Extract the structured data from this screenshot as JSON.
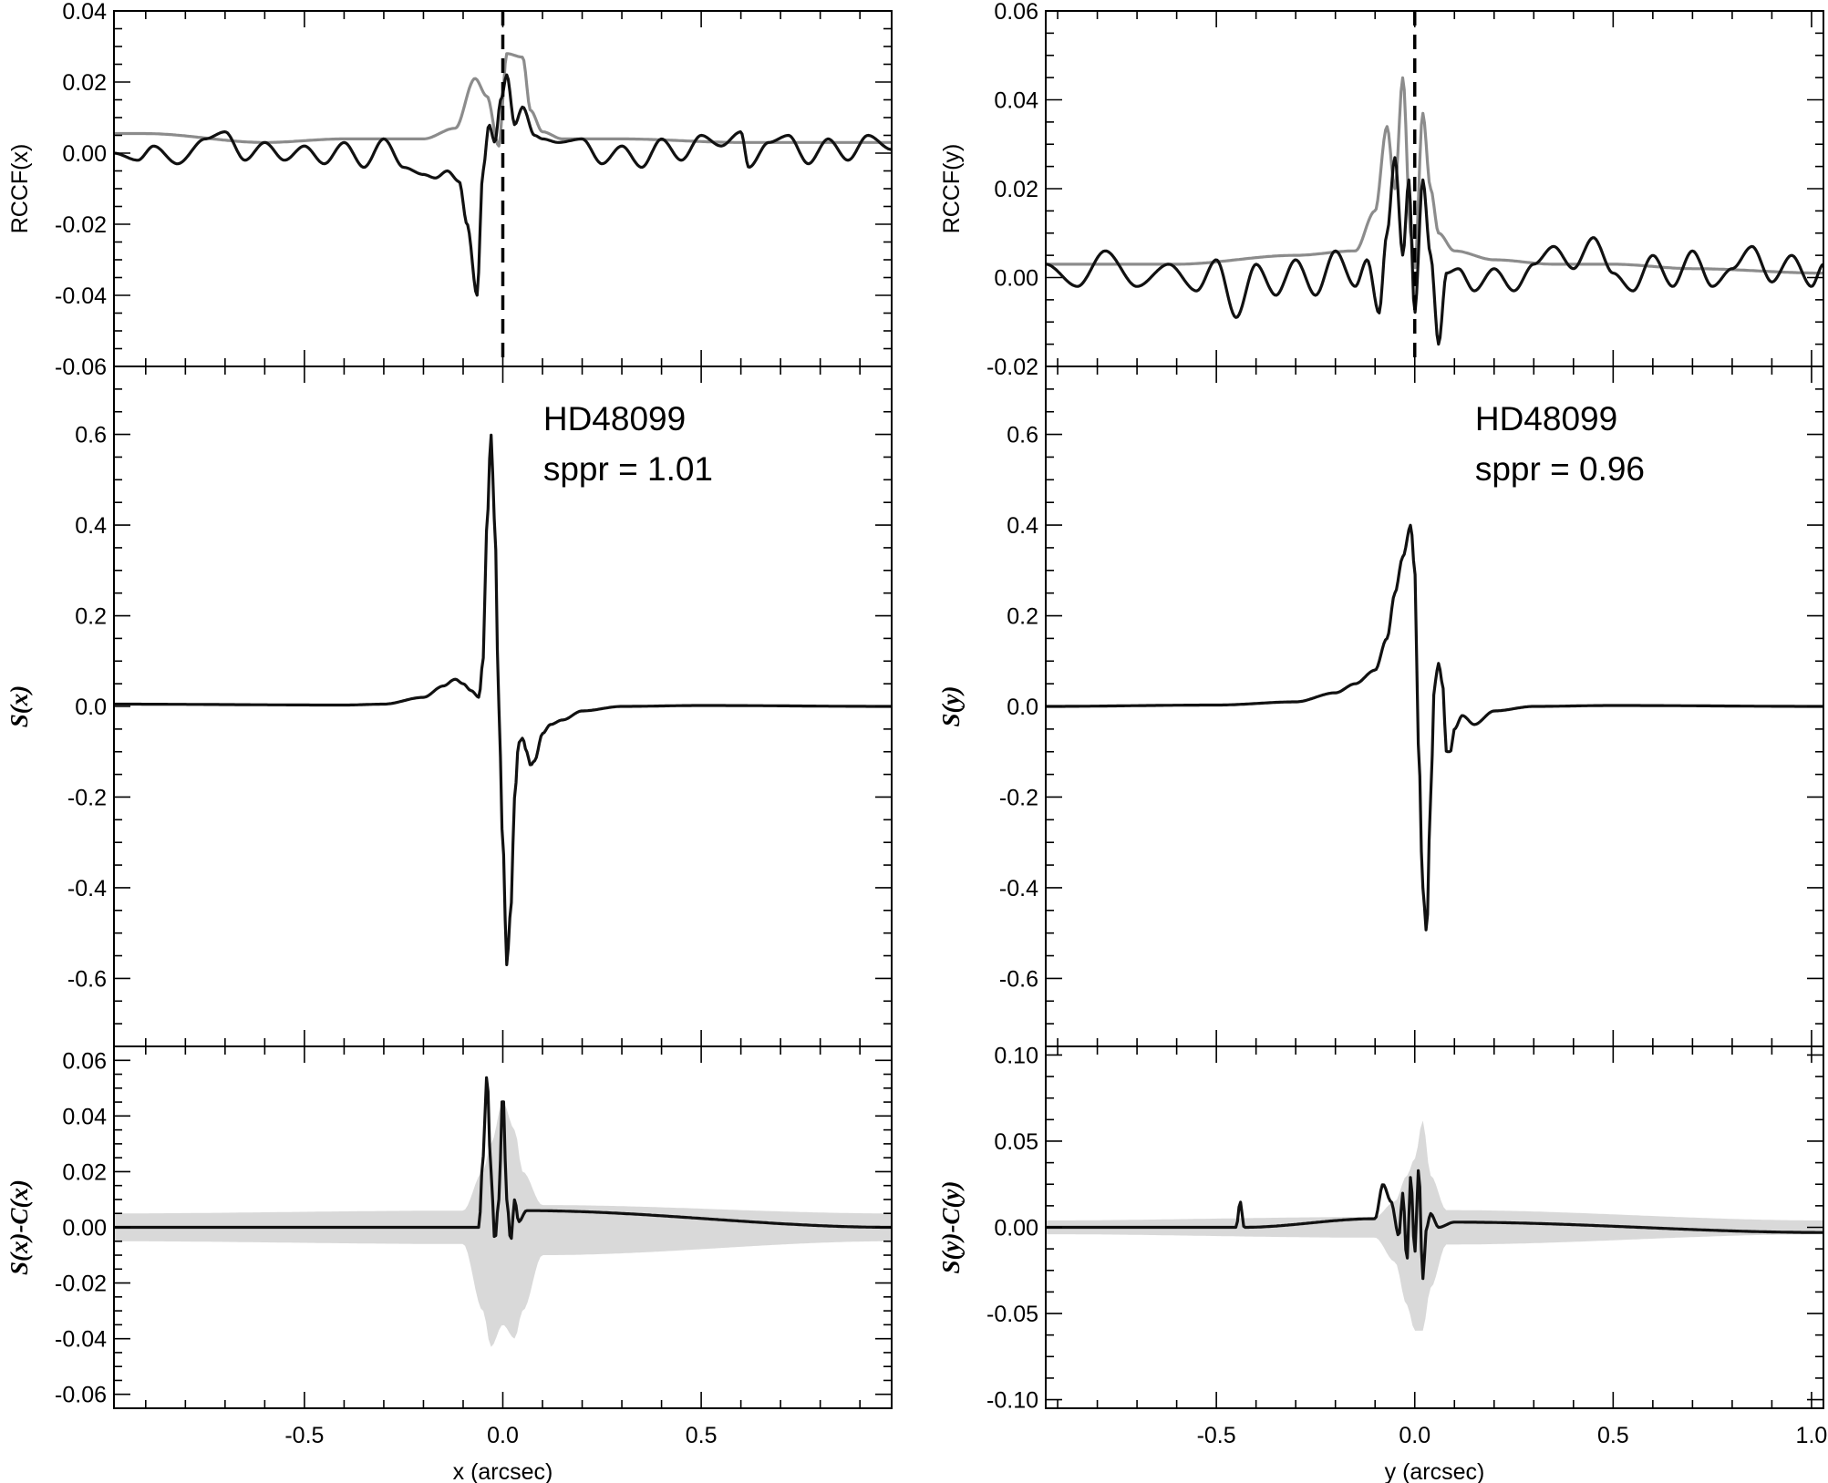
{
  "chart_data": [
    {
      "panel": "left-top",
      "type": "line",
      "ylabel": "RCCF(x)",
      "xlim": [
        -0.98,
        0.98
      ],
      "ylim": [
        -0.06,
        0.04
      ],
      "yticks": [
        -0.06,
        -0.04,
        -0.02,
        0.0,
        0.02,
        0.04
      ],
      "ytick_labels": [
        "-0.06",
        "-0.04",
        "-0.02",
        "0.00",
        "0.02",
        "0.04"
      ],
      "vline": {
        "x": 0.0,
        "style": "dashed"
      },
      "series": [
        {
          "color": "#8c8c8c",
          "x": [
            -0.98,
            -0.9,
            -0.6,
            -0.4,
            -0.2,
            -0.12,
            -0.07,
            -0.04,
            -0.01,
            0.01,
            0.05,
            0.07,
            0.1,
            0.15,
            0.3,
            0.6,
            0.98
          ],
          "values": [
            0.0055,
            0.0055,
            0.003,
            0.004,
            0.004,
            0.007,
            0.021,
            0.016,
            0.002,
            0.028,
            0.027,
            0.012,
            0.006,
            0.004,
            0.004,
            0.003,
            0.003
          ]
        },
        {
          "color": "#111111",
          "x": [
            -0.98,
            -0.92,
            -0.88,
            -0.82,
            -0.75,
            -0.7,
            -0.65,
            -0.6,
            -0.55,
            -0.5,
            -0.45,
            -0.4,
            -0.35,
            -0.3,
            -0.25,
            -0.2,
            -0.17,
            -0.14,
            -0.11,
            -0.09,
            -0.065,
            -0.05,
            -0.035,
            -0.02,
            -0.005,
            0.01,
            0.03,
            0.05,
            0.08,
            0.1,
            0.14,
            0.2,
            0.25,
            0.3,
            0.35,
            0.4,
            0.45,
            0.5,
            0.55,
            0.6,
            0.62,
            0.67,
            0.72,
            0.77,
            0.82,
            0.87,
            0.92,
            0.98
          ],
          "values": [
            0.0,
            -0.002,
            0.002,
            -0.003,
            0.004,
            0.006,
            -0.002,
            0.003,
            -0.002,
            0.002,
            -0.003,
            0.003,
            -0.004,
            0.004,
            -0.004,
            -0.006,
            -0.007,
            -0.005,
            -0.008,
            -0.02,
            -0.04,
            -0.005,
            0.008,
            0.003,
            0.015,
            0.022,
            0.008,
            0.013,
            0.005,
            0.004,
            0.003,
            0.004,
            -0.003,
            0.002,
            -0.004,
            0.004,
            -0.002,
            0.005,
            0.002,
            0.006,
            -0.004,
            0.003,
            0.005,
            -0.003,
            0.004,
            -0.002,
            0.005,
            0.001
          ]
        }
      ]
    },
    {
      "panel": "left-middle",
      "type": "line",
      "ylabel": "S(x)",
      "xlim": [
        -0.98,
        0.98
      ],
      "ylim": [
        -0.75,
        0.75
      ],
      "yticks": [
        -0.6,
        -0.4,
        -0.2,
        0.0,
        0.2,
        0.4,
        0.6
      ],
      "ytick_labels": [
        "-0.6",
        "-0.4",
        "-0.2",
        "0.0",
        "0.2",
        "0.4",
        "0.6"
      ],
      "annotations": [
        "HD48099",
        "sppr = 1.01"
      ],
      "series": [
        {
          "color": "#111111",
          "x": [
            -0.98,
            -0.4,
            -0.3,
            -0.2,
            -0.15,
            -0.12,
            -0.1,
            -0.08,
            -0.06,
            -0.05,
            -0.04,
            -0.03,
            -0.02,
            -0.01,
            0.0,
            0.01,
            0.02,
            0.03,
            0.04,
            0.05,
            0.06,
            0.07,
            0.08,
            0.1,
            0.12,
            0.15,
            0.2,
            0.3,
            0.5,
            0.98
          ],
          "values": [
            0.005,
            0.003,
            0.005,
            0.02,
            0.045,
            0.06,
            0.05,
            0.035,
            0.02,
            0.1,
            0.4,
            0.6,
            0.4,
            0.0,
            -0.3,
            -0.57,
            -0.45,
            -0.2,
            -0.08,
            -0.07,
            -0.1,
            -0.13,
            -0.12,
            -0.06,
            -0.04,
            -0.03,
            -0.01,
            0.0,
            0.002,
            0.0
          ]
        }
      ]
    },
    {
      "panel": "left-bottom",
      "type": "line",
      "ylabel": "S(x)-C(x)",
      "xlabel": "x (arcsec)",
      "xlim": [
        -0.98,
        0.98
      ],
      "ylim": [
        -0.065,
        0.065
      ],
      "yticks": [
        -0.06,
        -0.04,
        -0.02,
        0.0,
        0.02,
        0.04,
        0.06
      ],
      "ytick_labels": [
        "-0.06",
        "-0.04",
        "-0.02",
        "0.00",
        "0.02",
        "0.04",
        "0.06"
      ],
      "xticks": [
        -0.5,
        0.0,
        0.5
      ],
      "xtick_labels": [
        "-0.5",
        "0.0",
        "0.5"
      ],
      "band": {
        "color": "#d9d9d9",
        "x": [
          -0.98,
          -0.1,
          -0.05,
          -0.03,
          0.0,
          0.03,
          0.05,
          0.1,
          0.98
        ],
        "upper": [
          0.005,
          0.006,
          0.02,
          0.03,
          0.045,
          0.035,
          0.02,
          0.008,
          0.005
        ],
        "lower": [
          -0.005,
          -0.006,
          -0.03,
          -0.043,
          -0.035,
          -0.04,
          -0.03,
          -0.01,
          -0.005
        ]
      },
      "series": [
        {
          "color": "#111111",
          "x": [
            -0.98,
            -0.06,
            -0.05,
            -0.04,
            -0.03,
            -0.02,
            -0.01,
            0.0,
            0.01,
            0.02,
            0.03,
            0.04,
            0.06,
            0.98
          ],
          "values": [
            0.0,
            0.0,
            0.025,
            0.055,
            0.02,
            -0.005,
            0.01,
            0.049,
            0.01,
            -0.005,
            0.01,
            0.002,
            0.006,
            0.0
          ]
        }
      ]
    },
    {
      "panel": "right-top",
      "type": "line",
      "ylabel": "RCCF(y)",
      "xlim": [
        -0.93,
        1.03
      ],
      "ylim": [
        -0.02,
        0.06
      ],
      "yticks": [
        -0.02,
        0.0,
        0.02,
        0.04,
        0.06
      ],
      "ytick_labels": [
        "-0.02",
        "0.00",
        "0.02",
        "0.04",
        "0.06"
      ],
      "vline": {
        "x": 0.0,
        "style": "dashed"
      },
      "series": [
        {
          "color": "#8c8c8c",
          "x": [
            -0.93,
            -0.6,
            -0.3,
            -0.15,
            -0.1,
            -0.07,
            -0.05,
            -0.03,
            -0.01,
            0.0,
            0.02,
            0.04,
            0.06,
            0.1,
            0.2,
            0.35,
            0.5,
            0.7,
            1.03
          ],
          "values": [
            0.003,
            0.003,
            0.005,
            0.006,
            0.015,
            0.034,
            0.02,
            0.045,
            0.01,
            0.002,
            0.037,
            0.02,
            0.01,
            0.006,
            0.004,
            0.003,
            0.003,
            0.002,
            0.001
          ]
        },
        {
          "color": "#111111",
          "x": [
            -0.93,
            -0.85,
            -0.78,
            -0.7,
            -0.62,
            -0.55,
            -0.5,
            -0.45,
            -0.4,
            -0.35,
            -0.3,
            -0.25,
            -0.2,
            -0.15,
            -0.12,
            -0.09,
            -0.07,
            -0.05,
            -0.03,
            -0.015,
            0.0,
            0.02,
            0.04,
            0.06,
            0.08,
            0.11,
            0.15,
            0.2,
            0.25,
            0.3,
            0.35,
            0.4,
            0.45,
            0.5,
            0.55,
            0.6,
            0.65,
            0.7,
            0.75,
            0.8,
            0.85,
            0.9,
            0.95,
            1.0,
            1.03
          ],
          "values": [
            0.003,
            -0.002,
            0.006,
            -0.002,
            0.003,
            -0.003,
            0.004,
            -0.009,
            0.003,
            -0.004,
            0.004,
            -0.004,
            0.006,
            -0.002,
            0.004,
            -0.008,
            0.01,
            0.027,
            0.005,
            0.022,
            -0.008,
            0.022,
            0.005,
            -0.015,
            0.001,
            0.002,
            -0.003,
            0.002,
            -0.003,
            0.003,
            0.007,
            0.002,
            0.009,
            0.001,
            -0.003,
            0.005,
            -0.002,
            0.006,
            -0.002,
            0.002,
            0.007,
            -0.001,
            0.005,
            -0.002,
            0.003
          ]
        }
      ]
    },
    {
      "panel": "right-middle",
      "type": "line",
      "ylabel": "S(y)",
      "xlim": [
        -0.93,
        1.03
      ],
      "ylim": [
        -0.75,
        0.75
      ],
      "yticks": [
        -0.6,
        -0.4,
        -0.2,
        0.0,
        0.2,
        0.4,
        0.6
      ],
      "ytick_labels": [
        "-0.6",
        "-0.4",
        "-0.2",
        "0.0",
        "0.2",
        "0.4",
        "0.6"
      ],
      "annotations": [
        "HD48099",
        "sppr = 0.96"
      ],
      "series": [
        {
          "color": "#111111",
          "x": [
            -0.93,
            -0.5,
            -0.3,
            -0.2,
            -0.15,
            -0.1,
            -0.07,
            -0.05,
            -0.03,
            -0.01,
            0.0,
            0.01,
            0.02,
            0.03,
            0.04,
            0.05,
            0.06,
            0.07,
            0.08,
            0.09,
            0.1,
            0.12,
            0.15,
            0.2,
            0.3,
            0.5,
            1.03
          ],
          "values": [
            0.0,
            0.003,
            0.01,
            0.03,
            0.05,
            0.08,
            0.15,
            0.25,
            0.33,
            0.4,
            0.3,
            -0.1,
            -0.4,
            -0.5,
            -0.2,
            0.05,
            0.095,
            0.05,
            -0.1,
            -0.1,
            -0.05,
            -0.02,
            -0.04,
            -0.01,
            0.0,
            0.002,
            0.0
          ]
        }
      ]
    },
    {
      "panel": "right-bottom",
      "type": "line",
      "ylabel": "S(y)-C(y)",
      "xlabel": "y (arcsec)",
      "xlim": [
        -0.93,
        1.03
      ],
      "ylim": [
        -0.105,
        0.105
      ],
      "yticks": [
        -0.1,
        -0.05,
        0.0,
        0.05,
        0.1
      ],
      "ytick_labels": [
        "-0.10",
        "-0.05",
        "0.00",
        "0.05",
        "0.10"
      ],
      "xticks": [
        -0.5,
        0.0,
        0.5,
        1.0
      ],
      "xtick_labels": [
        "-0.5",
        "0.0",
        "0.5",
        "1.0"
      ],
      "band": {
        "color": "#d9d9d9",
        "x": [
          -0.93,
          -0.1,
          -0.05,
          -0.02,
          0.0,
          0.02,
          0.04,
          0.08,
          1.03
        ],
        "upper": [
          0.004,
          0.006,
          0.015,
          0.03,
          0.04,
          0.062,
          0.03,
          0.01,
          0.004
        ],
        "lower": [
          -0.004,
          -0.006,
          -0.02,
          -0.045,
          -0.06,
          -0.06,
          -0.035,
          -0.01,
          -0.004
        ]
      },
      "series": [
        {
          "color": "#111111",
          "x": [
            -0.93,
            -0.45,
            -0.44,
            -0.43,
            -0.1,
            -0.08,
            -0.06,
            -0.04,
            -0.03,
            -0.02,
            -0.01,
            0.0,
            0.01,
            0.02,
            0.03,
            0.04,
            0.06,
            0.1,
            1.03
          ],
          "values": [
            0.0,
            0.0,
            0.015,
            0.0,
            0.005,
            0.025,
            0.015,
            -0.005,
            0.02,
            -0.02,
            0.03,
            -0.015,
            0.035,
            -0.03,
            0.0,
            0.008,
            0.0,
            0.003,
            -0.003
          ]
        }
      ]
    }
  ]
}
